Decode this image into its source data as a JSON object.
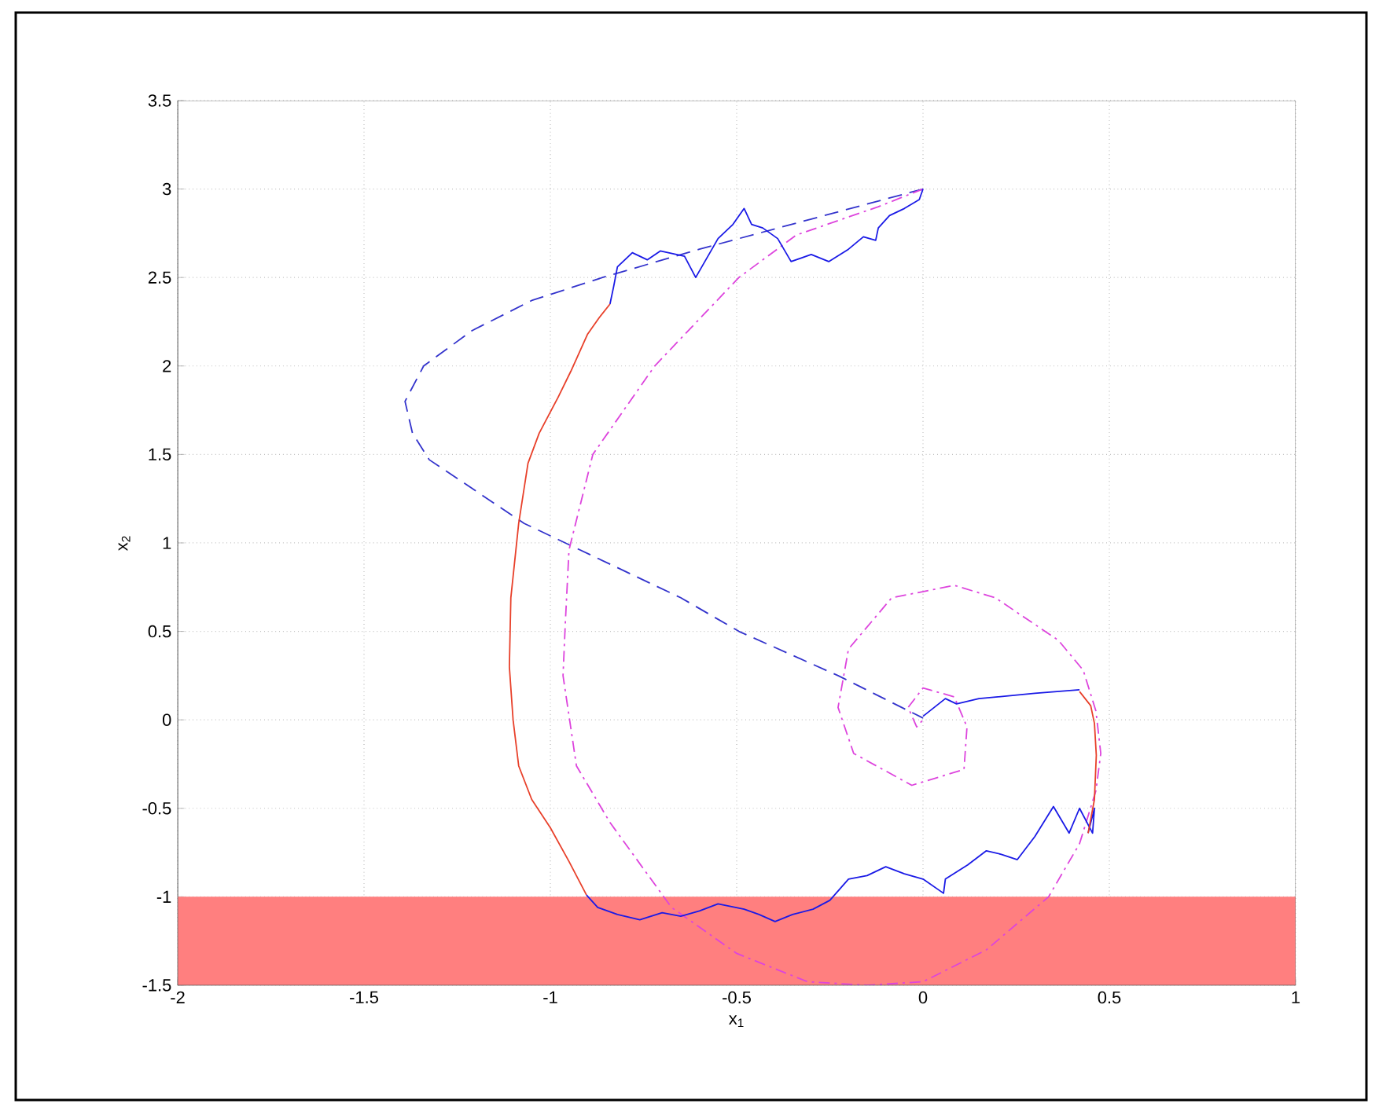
{
  "chart_data": {
    "type": "line",
    "xlabel": "x$_{1}$",
    "ylabel": "x$_{2}$",
    "xlim": [
      -2,
      1
    ],
    "ylim": [
      -1.5,
      3.5
    ],
    "xticks": [
      -2,
      -1.5,
      -1,
      -0.5,
      0,
      0.5,
      1
    ],
    "yticks": [
      -1.5,
      -1,
      -0.5,
      0,
      0.5,
      1,
      1.5,
      2,
      2.5,
      3,
      3.5
    ],
    "grid": true,
    "bands": [
      {
        "axis": "y",
        "from": -1.5,
        "to": -1,
        "color": "#ff7f7f"
      }
    ],
    "series": [
      {
        "color": "#3333cc",
        "line_style": "dashed",
        "x": [
          0,
          -0.3,
          -0.6,
          -0.86,
          -1.05,
          -1.21,
          -1.34,
          -1.39,
          -1.37,
          -1.325,
          -1.07,
          -0.65,
          -0.494,
          -0.228,
          0
        ],
        "values": [
          3,
          2.83,
          2.66,
          2.5,
          2.37,
          2.2,
          2.0,
          1.8,
          1.62,
          1.47,
          1.11,
          0.69,
          0.5,
          0.25,
          0.01
        ]
      },
      {
        "color": "#dd44dd",
        "line_style": "dashdot",
        "x": [
          0,
          -0.12,
          -0.34,
          -0.494,
          -0.72,
          -0.886,
          -0.95,
          -0.96,
          -0.966,
          -0.93,
          -0.84,
          -0.675,
          -0.5,
          -0.31,
          -0.15,
          0,
          0.17,
          0.337,
          0.42,
          0.464,
          0.477,
          0.464,
          0.43,
          0.363,
          0.194,
          0.084,
          -0.084,
          -0.2,
          -0.228,
          -0.186,
          -0.03,
          0.11,
          0.118,
          0.084,
          0,
          -0.04,
          -0.017,
          0
        ],
        "values": [
          3,
          2.9,
          2.74,
          2.5,
          2.0,
          1.5,
          0.96,
          0.54,
          0.25,
          -0.26,
          -0.58,
          -1.06,
          -1.32,
          -1.48,
          -1.5,
          -1.48,
          -1.3,
          -1.0,
          -0.7,
          -0.4,
          -0.19,
          0.05,
          0.28,
          0.45,
          0.69,
          0.76,
          0.69,
          0.4,
          0.07,
          -0.19,
          -0.37,
          -0.28,
          -0.04,
          0.13,
          0.18,
          0.07,
          -0.04,
          0
        ]
      },
      {
        "color": "#1a1ae6",
        "line_style": "solid",
        "x": [
          0,
          -0.01,
          -0.05,
          -0.09,
          -0.12,
          -0.127,
          -0.16,
          -0.2,
          -0.253,
          -0.3,
          -0.354,
          -0.39,
          -0.43,
          -0.46,
          -0.48,
          -0.51,
          -0.55,
          -0.61,
          -0.64,
          -0.705,
          -0.74,
          -0.78,
          -0.82,
          -0.83,
          -0.84
        ],
        "values": [
          3,
          2.94,
          2.89,
          2.85,
          2.78,
          2.71,
          2.73,
          2.66,
          2.59,
          2.63,
          2.59,
          2.72,
          2.78,
          2.8,
          2.89,
          2.8,
          2.72,
          2.5,
          2.62,
          2.65,
          2.6,
          2.64,
          2.56,
          2.45,
          2.35
        ]
      },
      {
        "color": "#e8402a",
        "line_style": "solid",
        "x": [
          -0.84,
          -0.87,
          -0.9,
          -0.945,
          -0.98,
          -1.03,
          -1.06,
          -1.085,
          -1.106,
          -1.11,
          -1.1,
          -1.085,
          -1.05,
          -1.0,
          -0.95,
          -0.903
        ],
        "values": [
          2.35,
          2.27,
          2.18,
          1.97,
          1.82,
          1.62,
          1.45,
          1.11,
          0.69,
          0.3,
          0,
          -0.26,
          -0.45,
          -0.61,
          -0.8,
          -0.99
        ]
      },
      {
        "color": "#1a1ae6",
        "line_style": "solid",
        "x": [
          -0.903,
          -0.873,
          -0.82,
          -0.76,
          -0.7,
          -0.65,
          -0.6,
          -0.55,
          -0.48,
          -0.44,
          -0.397,
          -0.35,
          -0.295,
          -0.25,
          -0.2,
          -0.15,
          -0.1,
          -0.05,
          0,
          0.055,
          0.06,
          0.12,
          0.17,
          0.21,
          0.253,
          0.3,
          0.35,
          0.392,
          0.42,
          0.455,
          0.46,
          0.443
        ],
        "values": [
          -0.99,
          -1.06,
          -1.1,
          -1.13,
          -1.09,
          -1.11,
          -1.08,
          -1.04,
          -1.07,
          -1.1,
          -1.14,
          -1.1,
          -1.07,
          -1.02,
          -0.9,
          -0.88,
          -0.83,
          -0.87,
          -0.9,
          -0.98,
          -0.9,
          -0.82,
          -0.74,
          -0.76,
          -0.79,
          -0.66,
          -0.49,
          -0.64,
          -0.5,
          -0.64,
          -0.5,
          -0.64
        ]
      },
      {
        "color": "#e8402a",
        "line_style": "solid",
        "x": [
          0.443,
          0.46,
          0.465,
          0.46,
          0.45,
          0.42
        ],
        "values": [
          -0.64,
          -0.45,
          -0.2,
          -0.02,
          0.08,
          0.16
        ]
      },
      {
        "color": "#1a1ae6",
        "line_style": "solid",
        "x": [
          0.42,
          0.3,
          0.15,
          0.09,
          0.06,
          0.03,
          0
        ],
        "values": [
          0.17,
          0.15,
          0.12,
          0.09,
          0.12,
          0.07,
          0.02
        ]
      }
    ]
  }
}
